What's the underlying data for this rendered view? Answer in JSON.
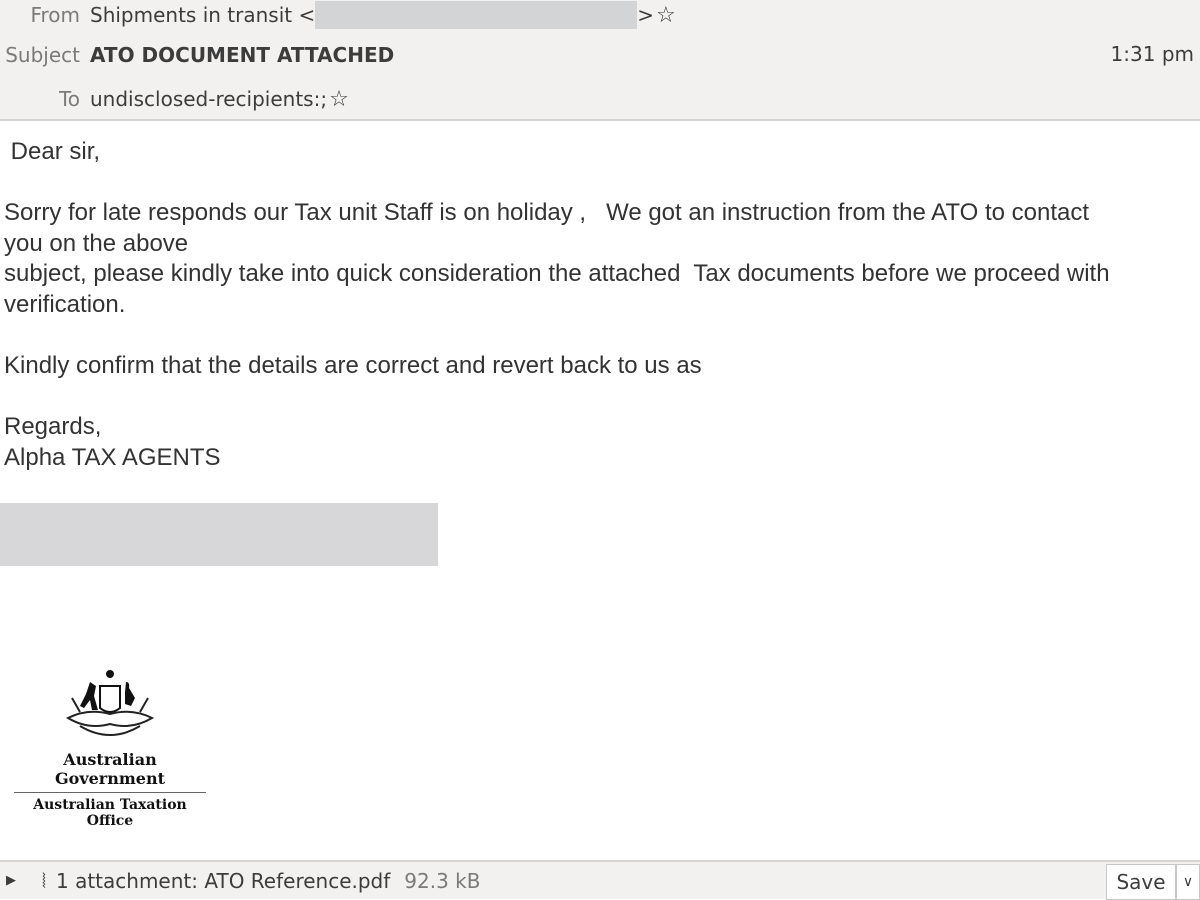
{
  "header": {
    "from_label": "From",
    "from_name": "Shipments in transit <",
    "from_close": ">",
    "subject_label": "Subject",
    "subject": "ATO DOCUMENT ATTACHED",
    "time": "1:31 pm",
    "to_label": "To",
    "to": "undisclosed-recipients:;"
  },
  "body": {
    "lines": [
      " Dear sir,",
      "Sorry for late responds our Tax unit Staff is on holiday ,   We got an instruction from the ATO to contact",
      "you on the above",
      "subject, please kindly take into quick consideration the attached  Tax documents before we proceed with",
      "verification.",
      "Kindly confirm that the details are correct and revert back to us as",
      "Regards,",
      "Alpha TAX AGENTS"
    ]
  },
  "logo": {
    "line1": "Australian Government",
    "line2": "Australian Taxation Office"
  },
  "attachment": {
    "label": "1 attachment: ATO Reference.pdf",
    "size": "92.3 kB",
    "save": "Save"
  }
}
